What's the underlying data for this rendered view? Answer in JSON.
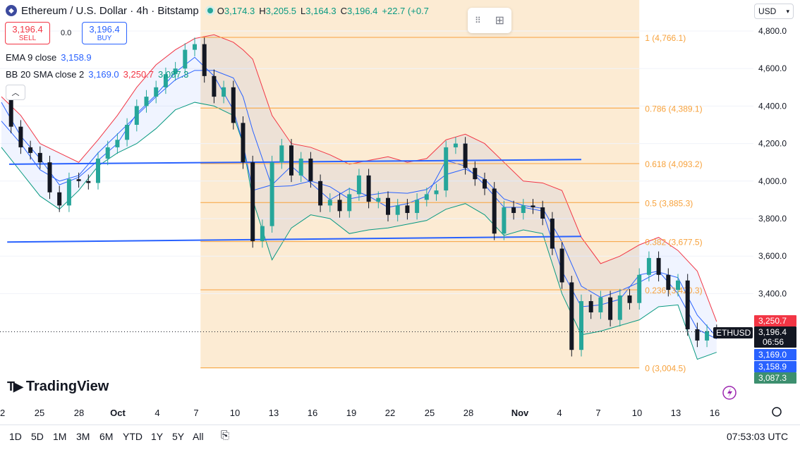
{
  "header": {
    "title": "Ethereum / U.S. Dollar · 4h · Bitstamp",
    "ohlc": [
      {
        "k": "O",
        "v": "3,174.3"
      },
      {
        "k": "H",
        "v": "3,205.5"
      },
      {
        "k": "L",
        "v": "3,164.3"
      },
      {
        "k": "C",
        "v": "3,196.4"
      },
      {
        "k": "",
        "v": "+22.7 (+0.7"
      }
    ]
  },
  "trade": {
    "sell_price": "3,196.4",
    "sell_label": "SELL",
    "spread": "0.0",
    "buy_price": "3,196.4",
    "buy_label": "BUY"
  },
  "indicators": {
    "ema": {
      "name": "EMA 9 close",
      "value": "3,158.9"
    },
    "bb": {
      "name": "BB 20 SMA close 2",
      "basis": "3,169.0",
      "upper": "3,250.7",
      "lower": "3,087.3"
    }
  },
  "currency": "USD",
  "logo": "TradingView",
  "ranges": [
    "1D",
    "5D",
    "1M",
    "3M",
    "6M",
    "YTD",
    "1Y",
    "5Y",
    "All"
  ],
  "utc_time": "07:53:03 UTC",
  "colors": {
    "up": "#26a69a",
    "down": "#131722",
    "bb_upper": "#f23645",
    "bb_lower": "#089981",
    "ema": "#2962ff",
    "fib": "#f7a23c",
    "trendline": "#2962ff"
  },
  "chart_data": {
    "type": "candlestick",
    "symbol": "ETHUSD",
    "timeframe": "4h",
    "y_ticks": [
      "4,800.0",
      "4,600.0",
      "4,400.0",
      "4,200.0",
      "4,000.0",
      "3,800.0",
      "3,600.0",
      "3,400.0"
    ],
    "x_ticks": [
      "22",
      "25",
      "28",
      "Oct",
      "4",
      "7",
      "10",
      "13",
      "16",
      "19",
      "22",
      "25",
      "28",
      "Nov",
      "4",
      "7",
      "10",
      "13",
      "16"
    ],
    "ylim": [
      2950,
      4850
    ],
    "price_labels": [
      {
        "text": "3,250.7",
        "value": 3250.7,
        "color": "#f23645"
      },
      {
        "text": "3,196.4",
        "value": 3196.4,
        "color": "#131722",
        "sub": "06:56",
        "tag": "ETHUSD"
      },
      {
        "text": "3,169.0",
        "value": 3169.0,
        "color": "#2962ff"
      },
      {
        "text": "3,158.9",
        "value": 3158.9,
        "color": "#2962ff"
      },
      {
        "text": "3,087.3",
        "value": 3087.3,
        "color": "#3d8f6f"
      }
    ],
    "fibonacci": [
      {
        "label": "1 (4,766.1)",
        "value": 4766.1
      },
      {
        "label": "0.786 (4,389.1)",
        "value": 4389.1
      },
      {
        "label": "0.618 (4,093.2)",
        "value": 4093.2
      },
      {
        "label": "0.5 (3,885.3)",
        "value": 3885.3
      },
      {
        "label": "0.382 (3,677.5)",
        "value": 3677.5
      },
      {
        "label": "0.236 (3,420.3)",
        "value": 3420.3
      },
      {
        "label": "0 (3,004.5)",
        "value": 3004.5
      }
    ],
    "trendlines": [
      {
        "x": [
          0.4,
          30.0
        ],
        "y": [
          4090,
          4115
        ]
      },
      {
        "x": [
          0.3,
          30.0
        ],
        "y": [
          3675,
          3705
        ]
      }
    ],
    "fib_x": [
      10.3,
      33.0
    ],
    "closes": [
      [
        0,
        4440
      ],
      [
        0.5,
        4290
      ],
      [
        1,
        4180
      ],
      [
        1.5,
        4150
      ],
      [
        2,
        4100
      ],
      [
        2.5,
        3940
      ],
      [
        3,
        3870
      ],
      [
        3.5,
        4010
      ],
      [
        4,
        4000
      ],
      [
        4.5,
        3990
      ],
      [
        5,
        4120
      ],
      [
        5.5,
        4180
      ],
      [
        6,
        4220
      ],
      [
        6.5,
        4300
      ],
      [
        7,
        4400
      ],
      [
        7.5,
        4450
      ],
      [
        8,
        4500
      ],
      [
        8.5,
        4570
      ],
      [
        9,
        4600
      ],
      [
        9.5,
        4700
      ],
      [
        10,
        4730
      ],
      [
        10.5,
        4560
      ],
      [
        11,
        4450
      ],
      [
        11.5,
        4500
      ],
      [
        12,
        4310
      ],
      [
        12.5,
        4100
      ],
      [
        13,
        3680
      ],
      [
        13.5,
        3760
      ],
      [
        14,
        4100
      ],
      [
        14.5,
        4190
      ],
      [
        15,
        4030
      ],
      [
        15.5,
        4120
      ],
      [
        16,
        4000
      ],
      [
        16.5,
        3870
      ],
      [
        17,
        3900
      ],
      [
        17.5,
        3840
      ],
      [
        18,
        3930
      ],
      [
        18.5,
        4030
      ],
      [
        19,
        3890
      ],
      [
        19.5,
        3910
      ],
      [
        20,
        3820
      ],
      [
        20.5,
        3870
      ],
      [
        21,
        3830
      ],
      [
        21.5,
        3900
      ],
      [
        22,
        3930
      ],
      [
        22.5,
        3950
      ],
      [
        23,
        4180
      ],
      [
        23.5,
        4200
      ],
      [
        24,
        4070
      ],
      [
        24.5,
        4010
      ],
      [
        25,
        3960
      ],
      [
        25.5,
        3720
      ],
      [
        26,
        3860
      ],
      [
        26.5,
        3830
      ],
      [
        27,
        3870
      ],
      [
        27.5,
        3860
      ],
      [
        28,
        3800
      ],
      [
        28.5,
        3640
      ],
      [
        29,
        3460
      ],
      [
        29.5,
        3100
      ],
      [
        30,
        3360
      ],
      [
        30.5,
        3300
      ],
      [
        31,
        3380
      ],
      [
        31.5,
        3260
      ],
      [
        32,
        3390
      ],
      [
        32.5,
        3350
      ],
      [
        33,
        3500
      ],
      [
        33.5,
        3590
      ],
      [
        34,
        3500
      ],
      [
        34.5,
        3420
      ],
      [
        35,
        3470
      ],
      [
        35.5,
        3210
      ],
      [
        36,
        3150
      ],
      [
        36.5,
        3200
      ],
      [
        37,
        3196.4
      ]
    ],
    "bb_upper": [
      [
        0,
        4450
      ],
      [
        1,
        4350
      ],
      [
        2,
        4200
      ],
      [
        3,
        4150
      ],
      [
        4,
        4100
      ],
      [
        5,
        4220
      ],
      [
        6,
        4350
      ],
      [
        7,
        4500
      ],
      [
        8,
        4620
      ],
      [
        9,
        4700
      ],
      [
        10,
        4760
      ],
      [
        11,
        4780
      ],
      [
        12,
        4740
      ],
      [
        12.5,
        4700
      ],
      [
        13,
        4650
      ],
      [
        14,
        4350
      ],
      [
        15,
        4200
      ],
      [
        16,
        4180
      ],
      [
        17,
        4140
      ],
      [
        18,
        4090
      ],
      [
        19,
        4110
      ],
      [
        20,
        4130
      ],
      [
        21,
        4100
      ],
      [
        22,
        4120
      ],
      [
        23,
        4220
      ],
      [
        24,
        4250
      ],
      [
        25,
        4200
      ],
      [
        26,
        4100
      ],
      [
        27,
        4000
      ],
      [
        28,
        3990
      ],
      [
        29,
        3950
      ],
      [
        30,
        3700
      ],
      [
        31,
        3560
      ],
      [
        32,
        3600
      ],
      [
        33,
        3660
      ],
      [
        34,
        3700
      ],
      [
        35,
        3630
      ],
      [
        36,
        3520
      ],
      [
        37,
        3250.7
      ]
    ],
    "bb_lower": [
      [
        0,
        4180
      ],
      [
        1,
        4050
      ],
      [
        2,
        3920
      ],
      [
        3,
        3850
      ],
      [
        4,
        3950
      ],
      [
        5,
        4080
      ],
      [
        6,
        4150
      ],
      [
        7,
        4200
      ],
      [
        8,
        4280
      ],
      [
        9,
        4380
      ],
      [
        10,
        4420
      ],
      [
        11,
        4400
      ],
      [
        12,
        4350
      ],
      [
        12.5,
        4200
      ],
      [
        13,
        3900
      ],
      [
        14,
        3580
      ],
      [
        15,
        3750
      ],
      [
        16,
        3820
      ],
      [
        17,
        3800
      ],
      [
        18,
        3720
      ],
      [
        19,
        3740
      ],
      [
        20,
        3750
      ],
      [
        21,
        3770
      ],
      [
        22,
        3790
      ],
      [
        23,
        3850
      ],
      [
        24,
        3880
      ],
      [
        25,
        3820
      ],
      [
        26,
        3710
      ],
      [
        27,
        3740
      ],
      [
        28,
        3720
      ],
      [
        29,
        3400
      ],
      [
        30,
        3180
      ],
      [
        31,
        3200
      ],
      [
        32,
        3230
      ],
      [
        33,
        3260
      ],
      [
        34,
        3330
      ],
      [
        35,
        3340
      ],
      [
        36,
        3050
      ],
      [
        37,
        3087.3
      ]
    ],
    "bb_basis": [
      [
        0,
        4320
      ],
      [
        1,
        4200
      ],
      [
        2,
        4060
      ],
      [
        3,
        4000
      ],
      [
        4,
        4030
      ],
      [
        5,
        4150
      ],
      [
        6,
        4250
      ],
      [
        7,
        4350
      ],
      [
        8,
        4450
      ],
      [
        9,
        4540
      ],
      [
        10,
        4590
      ],
      [
        11,
        4590
      ],
      [
        12,
        4550
      ],
      [
        12.5,
        4450
      ],
      [
        13,
        4270
      ],
      [
        14,
        3970
      ],
      [
        15,
        3975
      ],
      [
        16,
        4000
      ],
      [
        17,
        3970
      ],
      [
        18,
        3905
      ],
      [
        19,
        3925
      ],
      [
        20,
        3940
      ],
      [
        21,
        3935
      ],
      [
        22,
        3955
      ],
      [
        23,
        4035
      ],
      [
        24,
        4065
      ],
      [
        25,
        4010
      ],
      [
        26,
        3905
      ],
      [
        27,
        3870
      ],
      [
        28,
        3855
      ],
      [
        29,
        3675
      ],
      [
        30,
        3440
      ],
      [
        31,
        3380
      ],
      [
        32,
        3415
      ],
      [
        33,
        3460
      ],
      [
        34,
        3515
      ],
      [
        35,
        3485
      ],
      [
        36,
        3285
      ],
      [
        37,
        3169.0
      ]
    ],
    "ema9": [
      [
        0,
        4420
      ],
      [
        1,
        4240
      ],
      [
        2,
        4120
      ],
      [
        3,
        3980
      ],
      [
        4,
        4020
      ],
      [
        5,
        4110
      ],
      [
        6,
        4200
      ],
      [
        7,
        4360
      ],
      [
        8,
        4460
      ],
      [
        9,
        4580
      ],
      [
        10,
        4660
      ],
      [
        11,
        4560
      ],
      [
        12,
        4380
      ],
      [
        12.5,
        4200
      ],
      [
        13,
        3950
      ],
      [
        14,
        3980
      ],
      [
        15,
        4080
      ],
      [
        16,
        3990
      ],
      [
        17,
        3900
      ],
      [
        18,
        3960
      ],
      [
        19,
        3920
      ],
      [
        20,
        3860
      ],
      [
        21,
        3880
      ],
      [
        22,
        3920
      ],
      [
        23,
        4110
      ],
      [
        24,
        4080
      ],
      [
        25,
        3980
      ],
      [
        26,
        3860
      ],
      [
        27,
        3860
      ],
      [
        28,
        3840
      ],
      [
        29,
        3520
      ],
      [
        30,
        3330
      ],
      [
        31,
        3340
      ],
      [
        32,
        3370
      ],
      [
        33,
        3500
      ],
      [
        34,
        3520
      ],
      [
        35,
        3400
      ],
      [
        36,
        3210
      ],
      [
        37,
        3158.9
      ]
    ]
  }
}
